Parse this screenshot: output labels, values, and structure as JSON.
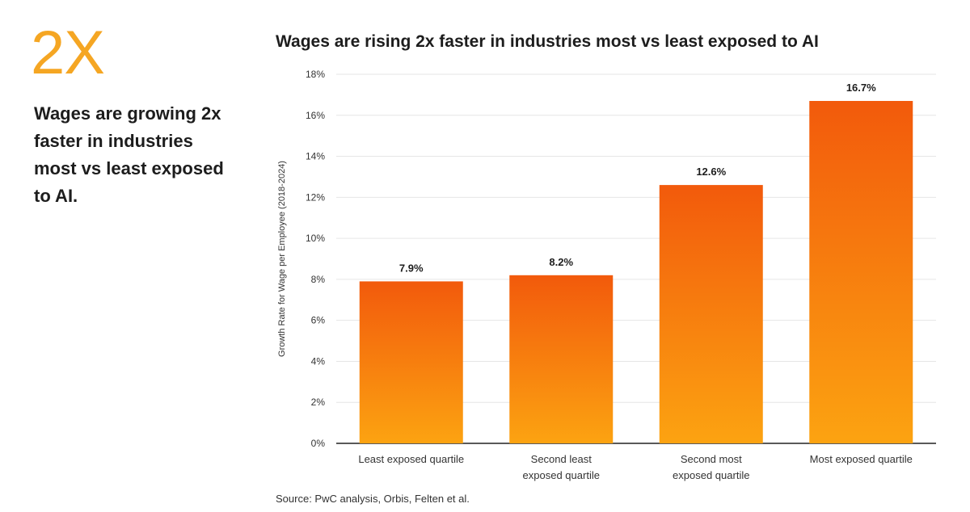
{
  "highlight": {
    "stat": "2X",
    "text": "Wages are growing 2x faster in industries most vs least exposed to AI.",
    "color": "#f5a623"
  },
  "chart_data": {
    "type": "bar",
    "title": "Wages are rising 2x faster in industries most vs least exposed to AI",
    "ylabel": "Growth Rate for Wage per Employee (2018-2024)",
    "xlabel": "",
    "categories": [
      [
        "Least exposed quartile"
      ],
      [
        "Second least",
        "exposed quartile"
      ],
      [
        "Second most",
        "exposed quartile"
      ],
      [
        "Most exposed quartile"
      ]
    ],
    "values": [
      7.9,
      8.2,
      12.6,
      16.7
    ],
    "data_labels": [
      "7.9%",
      "8.2%",
      "12.6%",
      "16.7%"
    ],
    "ylim": [
      0,
      18
    ],
    "yticks": [
      0,
      2,
      4,
      6,
      8,
      10,
      12,
      14,
      16,
      18
    ],
    "ytick_labels": [
      "0%",
      "2%",
      "4%",
      "6%",
      "8%",
      "10%",
      "12%",
      "14%",
      "16%",
      "18%"
    ],
    "grid": true,
    "colors": {
      "bar_top": "#f25a0c",
      "bar_bottom": "#fca311",
      "grid": "#e6e6e6",
      "axis": "#222222"
    },
    "source": "Source: PwC analysis, Orbis, Felten et al."
  }
}
